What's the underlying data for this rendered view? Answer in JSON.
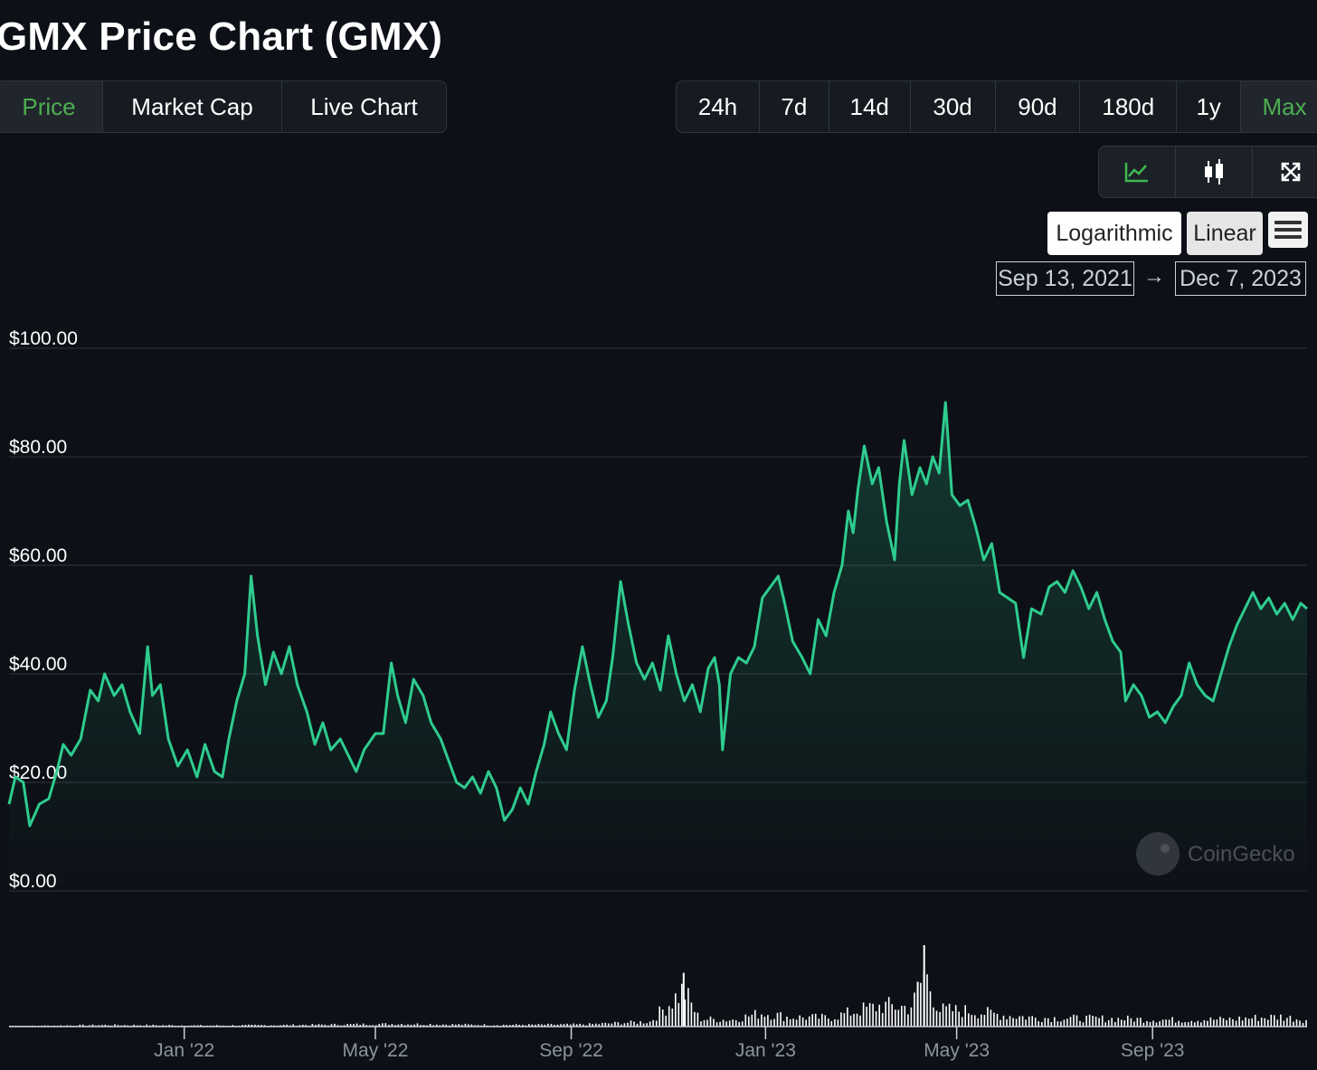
{
  "page": {
    "title": "GMX Price Chart (GMX)"
  },
  "tabs": [
    {
      "label": "Price",
      "active": true
    },
    {
      "label": "Market Cap",
      "active": false
    },
    {
      "label": "Live Chart",
      "active": false
    }
  ],
  "ranges": [
    {
      "label": "24h",
      "active": false
    },
    {
      "label": "7d",
      "active": false
    },
    {
      "label": "14d",
      "active": false
    },
    {
      "label": "30d",
      "active": false
    },
    {
      "label": "90d",
      "active": false
    },
    {
      "label": "180d",
      "active": false
    },
    {
      "label": "1y",
      "active": false
    },
    {
      "label": "Max",
      "active": true
    }
  ],
  "view_buttons": [
    {
      "icon": "line-chart-icon",
      "active": true
    },
    {
      "icon": "candlestick-icon",
      "active": false
    },
    {
      "icon": "fullscreen-icon",
      "active": false
    }
  ],
  "scale": {
    "log_label": "Logarithmic",
    "linear_label": "Linear",
    "selected": "Linear"
  },
  "date_range": {
    "from": "Sep 13, 2021",
    "arrow": "→",
    "to": "Dec 7, 2023"
  },
  "watermark": "CoinGecko",
  "colors": {
    "line": "#2ecc8f",
    "active_tab": "#4caf50",
    "background": "#0d1117",
    "volume": "#ffffff"
  },
  "chart_data": {
    "type": "area",
    "title": "",
    "xlabel": "",
    "ylabel": "",
    "y_scale": "linear",
    "ylim": [
      0,
      100
    ],
    "yticks": [
      100,
      80,
      60,
      40,
      20,
      0
    ],
    "ytick_labels": [
      "$100.00",
      "$80.00",
      "$60.00",
      "$40.00",
      "$20.00",
      "$0.00"
    ],
    "xlim": [
      "2021-09-13",
      "2023-12-07"
    ],
    "xticks": [
      "2022-01-01",
      "2022-05-01",
      "2022-09-01",
      "2023-01-01",
      "2023-05-01",
      "2023-09-01"
    ],
    "xtick_labels": [
      "Jan '22",
      "May '22",
      "Sep '22",
      "Jan '23",
      "May '23",
      "Sep '23"
    ],
    "grid": true,
    "series": [
      {
        "points": [
          [
            "2021-09-13",
            16
          ],
          [
            "2021-09-17",
            21
          ],
          [
            "2021-09-22",
            20
          ],
          [
            "2021-09-26",
            12
          ],
          [
            "2021-10-02",
            16
          ],
          [
            "2021-10-08",
            17
          ],
          [
            "2021-10-13",
            22
          ],
          [
            "2021-10-17",
            27
          ],
          [
            "2021-10-22",
            25
          ],
          [
            "2021-10-28",
            28
          ],
          [
            "2021-11-03",
            37
          ],
          [
            "2021-11-08",
            35
          ],
          [
            "2021-11-12",
            40
          ],
          [
            "2021-11-18",
            36
          ],
          [
            "2021-11-23",
            38
          ],
          [
            "2021-11-28",
            33
          ],
          [
            "2021-12-04",
            29
          ],
          [
            "2021-12-09",
            45
          ],
          [
            "2021-12-12",
            36
          ],
          [
            "2021-12-17",
            38
          ],
          [
            "2021-12-22",
            28
          ],
          [
            "2021-12-28",
            23
          ],
          [
            "2022-01-03",
            26
          ],
          [
            "2022-01-09",
            21
          ],
          [
            "2022-01-14",
            27
          ],
          [
            "2022-01-20",
            22
          ],
          [
            "2022-01-25",
            21
          ],
          [
            "2022-01-29",
            28
          ],
          [
            "2022-02-03",
            35
          ],
          [
            "2022-02-08",
            40
          ],
          [
            "2022-02-12",
            58
          ],
          [
            "2022-02-16",
            47
          ],
          [
            "2022-02-21",
            38
          ],
          [
            "2022-02-26",
            44
          ],
          [
            "2022-03-03",
            40
          ],
          [
            "2022-03-08",
            45
          ],
          [
            "2022-03-13",
            38
          ],
          [
            "2022-03-19",
            33
          ],
          [
            "2022-03-24",
            27
          ],
          [
            "2022-03-29",
            31
          ],
          [
            "2022-04-03",
            26
          ],
          [
            "2022-04-09",
            28
          ],
          [
            "2022-04-14",
            25
          ],
          [
            "2022-04-19",
            22
          ],
          [
            "2022-04-24",
            26
          ],
          [
            "2022-05-01",
            29
          ],
          [
            "2022-05-06",
            29
          ],
          [
            "2022-05-11",
            42
          ],
          [
            "2022-05-15",
            36
          ],
          [
            "2022-05-20",
            31
          ],
          [
            "2022-05-25",
            39
          ],
          [
            "2022-05-31",
            36
          ],
          [
            "2022-06-05",
            31
          ],
          [
            "2022-06-11",
            28
          ],
          [
            "2022-06-16",
            24
          ],
          [
            "2022-06-21",
            20
          ],
          [
            "2022-06-26",
            19
          ],
          [
            "2022-07-01",
            21
          ],
          [
            "2022-07-06",
            18
          ],
          [
            "2022-07-11",
            22
          ],
          [
            "2022-07-16",
            19
          ],
          [
            "2022-07-21",
            13
          ],
          [
            "2022-07-26",
            15
          ],
          [
            "2022-07-31",
            19
          ],
          [
            "2022-08-05",
            16
          ],
          [
            "2022-08-10",
            22
          ],
          [
            "2022-08-15",
            27
          ],
          [
            "2022-08-19",
            33
          ],
          [
            "2022-08-24",
            29
          ],
          [
            "2022-08-29",
            26
          ],
          [
            "2022-09-03",
            37
          ],
          [
            "2022-09-08",
            45
          ],
          [
            "2022-09-13",
            38
          ],
          [
            "2022-09-18",
            32
          ],
          [
            "2022-09-23",
            35
          ],
          [
            "2022-09-27",
            43
          ],
          [
            "2022-10-02",
            57
          ],
          [
            "2022-10-07",
            49
          ],
          [
            "2022-10-12",
            42
          ],
          [
            "2022-10-17",
            39
          ],
          [
            "2022-10-22",
            42
          ],
          [
            "2022-10-27",
            37
          ],
          [
            "2022-11-01",
            47
          ],
          [
            "2022-11-06",
            40
          ],
          [
            "2022-11-11",
            35
          ],
          [
            "2022-11-16",
            38
          ],
          [
            "2022-11-21",
            33
          ],
          [
            "2022-11-26",
            41
          ],
          [
            "2022-11-30",
            43
          ],
          [
            "2022-12-03",
            38
          ],
          [
            "2022-12-05",
            26
          ],
          [
            "2022-12-10",
            40
          ],
          [
            "2022-12-15",
            43
          ],
          [
            "2022-12-20",
            42
          ],
          [
            "2022-12-25",
            45
          ],
          [
            "2022-12-30",
            54
          ],
          [
            "2023-01-04",
            56
          ],
          [
            "2023-01-09",
            58
          ],
          [
            "2023-01-13",
            53
          ],
          [
            "2023-01-18",
            46
          ],
          [
            "2023-01-24",
            43
          ],
          [
            "2023-01-29",
            40
          ],
          [
            "2023-02-03",
            50
          ],
          [
            "2023-02-08",
            47
          ],
          [
            "2023-02-13",
            55
          ],
          [
            "2023-02-18",
            60
          ],
          [
            "2023-02-22",
            70
          ],
          [
            "2023-02-25",
            66
          ],
          [
            "2023-02-28",
            74
          ],
          [
            "2023-03-04",
            82
          ],
          [
            "2023-03-09",
            75
          ],
          [
            "2023-03-13",
            78
          ],
          [
            "2023-03-18",
            68
          ],
          [
            "2023-03-23",
            61
          ],
          [
            "2023-03-26",
            75
          ],
          [
            "2023-03-29",
            83
          ],
          [
            "2023-04-03",
            73
          ],
          [
            "2023-04-08",
            78
          ],
          [
            "2023-04-12",
            75
          ],
          [
            "2023-04-16",
            80
          ],
          [
            "2023-04-20",
            77
          ],
          [
            "2023-04-24",
            90
          ],
          [
            "2023-04-28",
            73
          ],
          [
            "2023-05-03",
            71
          ],
          [
            "2023-05-08",
            72
          ],
          [
            "2023-05-13",
            67
          ],
          [
            "2023-05-18",
            61
          ],
          [
            "2023-05-23",
            64
          ],
          [
            "2023-05-28",
            55
          ],
          [
            "2023-06-02",
            54
          ],
          [
            "2023-06-07",
            53
          ],
          [
            "2023-06-12",
            43
          ],
          [
            "2023-06-17",
            52
          ],
          [
            "2023-06-23",
            51
          ],
          [
            "2023-06-28",
            56
          ],
          [
            "2023-07-03",
            57
          ],
          [
            "2023-07-08",
            55
          ],
          [
            "2023-07-13",
            59
          ],
          [
            "2023-07-18",
            56
          ],
          [
            "2023-07-23",
            52
          ],
          [
            "2023-07-28",
            55
          ],
          [
            "2023-08-02",
            50
          ],
          [
            "2023-08-07",
            46
          ],
          [
            "2023-08-12",
            44
          ],
          [
            "2023-08-15",
            35
          ],
          [
            "2023-08-20",
            38
          ],
          [
            "2023-08-25",
            36
          ],
          [
            "2023-08-30",
            32
          ],
          [
            "2023-09-04",
            33
          ],
          [
            "2023-09-09",
            31
          ],
          [
            "2023-09-14",
            34
          ],
          [
            "2023-09-19",
            36
          ],
          [
            "2023-09-24",
            42
          ],
          [
            "2023-09-29",
            38
          ],
          [
            "2023-10-04",
            36
          ],
          [
            "2023-10-09",
            35
          ],
          [
            "2023-10-14",
            40
          ],
          [
            "2023-10-19",
            45
          ],
          [
            "2023-10-24",
            49
          ],
          [
            "2023-10-29",
            52
          ],
          [
            "2023-11-03",
            55
          ],
          [
            "2023-11-08",
            52
          ],
          [
            "2023-11-13",
            54
          ],
          [
            "2023-11-18",
            51
          ],
          [
            "2023-11-23",
            53
          ],
          [
            "2023-11-28",
            50
          ],
          [
            "2023-12-03",
            53
          ],
          [
            "2023-12-07",
            52
          ]
        ]
      }
    ],
    "volume_relative": [
      [
        "2021-09-13",
        0.01
      ],
      [
        "2021-11-15",
        0.03
      ],
      [
        "2022-01-15",
        0.02
      ],
      [
        "2022-03-15",
        0.03
      ],
      [
        "2022-05-15",
        0.05
      ],
      [
        "2022-07-15",
        0.03
      ],
      [
        "2022-09-10",
        0.04
      ],
      [
        "2022-10-20",
        0.09
      ],
      [
        "2022-11-10",
        0.66
      ],
      [
        "2022-11-20",
        0.14
      ],
      [
        "2022-12-10",
        0.12
      ],
      [
        "2022-12-30",
        0.25
      ],
      [
        "2023-01-15",
        0.17
      ],
      [
        "2023-02-10",
        0.16
      ],
      [
        "2023-03-01",
        0.3
      ],
      [
        "2023-03-15",
        0.38
      ],
      [
        "2023-04-01",
        0.35
      ],
      [
        "2023-04-06",
        0.55
      ],
      [
        "2023-04-10",
        1.0
      ],
      [
        "2023-04-20",
        0.3
      ],
      [
        "2023-05-10",
        0.28
      ],
      [
        "2023-06-01",
        0.2
      ],
      [
        "2023-06-20",
        0.16
      ],
      [
        "2023-07-15",
        0.15
      ],
      [
        "2023-08-15",
        0.14
      ],
      [
        "2023-09-15",
        0.12
      ],
      [
        "2023-10-15",
        0.13
      ],
      [
        "2023-11-20",
        0.18
      ],
      [
        "2023-12-07",
        0.12
      ]
    ]
  }
}
